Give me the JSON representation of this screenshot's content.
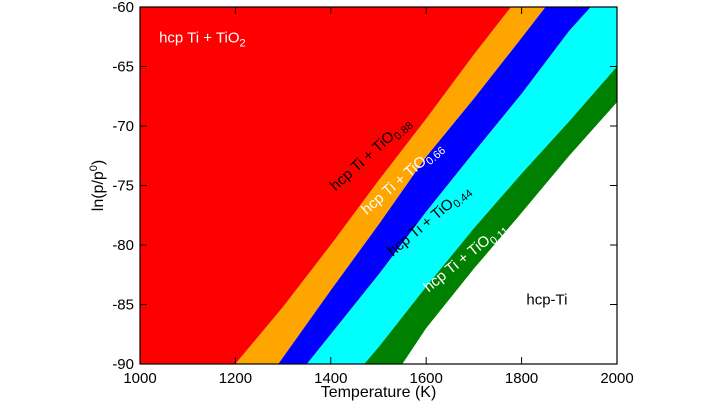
{
  "chart_data": {
    "type": "area",
    "title": "",
    "xlabel": "Temperature (K)",
    "ylabel": "ln(p/p0)",
    "ylabel_parts": {
      "main": "ln(p/p",
      "sup": "0",
      "end": ")"
    },
    "xlim": [
      1000,
      2000
    ],
    "ylim": [
      -90,
      -60
    ],
    "xticks": [
      1000,
      1200,
      1400,
      1600,
      1800,
      2000
    ],
    "yticks": [
      -90,
      -85,
      -80,
      -75,
      -70,
      -65,
      -60
    ],
    "grid": false,
    "boundaries": [
      {
        "name": "TiO2 / TiO0.88",
        "x": [
          1200,
          1300,
          1400,
          1500,
          1600,
          1700,
          1778
        ],
        "y": [
          -90,
          -85.2,
          -80.0,
          -74.6,
          -69.4,
          -64.0,
          -60
        ]
      },
      {
        "name": "TiO0.88 / TiO0.66",
        "x": [
          1290,
          1400,
          1500,
          1600,
          1700,
          1800,
          1850
        ],
        "y": [
          -90,
          -83.8,
          -78.3,
          -72.6,
          -67.7,
          -62.6,
          -60
        ]
      },
      {
        "name": "TiO0.66 / TiO0.44",
        "x": [
          1350,
          1400,
          1500,
          1600,
          1700,
          1800,
          1900,
          1945
        ],
        "y": [
          -90,
          -87.5,
          -82.5,
          -77.2,
          -72.2,
          -67.3,
          -62.0,
          -60
        ]
      },
      {
        "name": "TiO0.44 / TiO0.11",
        "x": [
          1470,
          1500,
          1600,
          1700,
          1800,
          1900,
          2000
        ],
        "y": [
          -90,
          -88.6,
          -83.5,
          -78.6,
          -74.0,
          -69.6,
          -65.0
        ]
      },
      {
        "name": "TiO0.11 / hcp-Ti",
        "x": [
          1550,
          1600,
          1700,
          1800,
          1900,
          2000
        ],
        "y": [
          -90,
          -87.0,
          -82.0,
          -77.3,
          -72.5,
          -68.0
        ]
      }
    ],
    "regions": [
      {
        "label_main": "hcp Ti + TiO",
        "label_sub": "2",
        "color": "#ff0000",
        "text_color": "#ffffff",
        "at": [
          1040,
          -63.0
        ],
        "angle": 0
      },
      {
        "label_main": "hcp Ti + TiO",
        "label_sub": "0.88",
        "color": "#ffa500",
        "text_color": "#000000",
        "at": [
          1410,
          -75.5
        ],
        "angle": -42
      },
      {
        "label_main": "hcp Ti + TiO",
        "label_sub": "0.66",
        "color": "#0000ff",
        "text_color": "#ffffff",
        "at": [
          1475,
          -77.5
        ],
        "angle": -41
      },
      {
        "label_main": "hcp Ti + TiO",
        "label_sub": "0.44",
        "color": "#00ffff",
        "text_color": "#000000",
        "at": [
          1530,
          -81.0
        ],
        "angle": -40
      },
      {
        "label_main": "hcp Ti + TiO",
        "label_sub": "0.11",
        "color": "#008000",
        "text_color": "#ffffff",
        "at": [
          1605,
          -84.0
        ],
        "angle": -39
      },
      {
        "label_main": "hcp-Ti",
        "label_sub": "",
        "color": "#ffffff",
        "text_color": "#000000",
        "at": [
          1810,
          -85.0
        ],
        "angle": 0
      }
    ]
  }
}
